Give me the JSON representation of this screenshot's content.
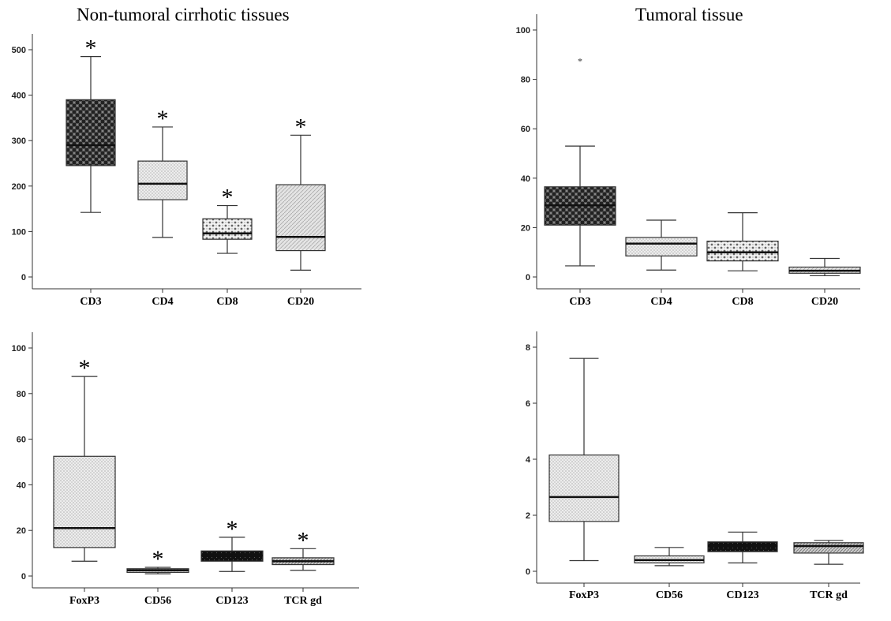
{
  "column_titles": {
    "left": "Non-tumoral cirrhotic tissues",
    "right": "Tumoral tissue"
  },
  "chart_data": [
    {
      "type": "box",
      "panel": "top-left",
      "title": "",
      "ylim": [
        0,
        500
      ],
      "yticks": [
        0,
        100,
        200,
        300,
        400,
        500
      ],
      "categories": [
        "CD3",
        "CD4",
        "CD8",
        "CD20"
      ],
      "boxes": [
        {
          "min": 142,
          "q1": 245,
          "median": 290,
          "q3": 390,
          "max": 485,
          "pattern": "dark-check"
        },
        {
          "min": 87,
          "q1": 170,
          "median": 205,
          "q3": 255,
          "max": 330,
          "pattern": "fine-dot"
        },
        {
          "min": 52,
          "q1": 83,
          "median": 96,
          "q3": 128,
          "max": 157,
          "pattern": "cross-dot"
        },
        {
          "min": 15,
          "q1": 58,
          "median": 88,
          "q3": 203,
          "max": 312,
          "pattern": "diag-light"
        }
      ],
      "significance": [
        "*",
        "*",
        "*",
        "*"
      ]
    },
    {
      "type": "box",
      "panel": "top-right",
      "title": "",
      "ylim": [
        0,
        100
      ],
      "yticks": [
        0,
        20,
        40,
        60,
        80,
        100
      ],
      "categories": [
        "CD3",
        "CD4",
        "CD8",
        "CD20"
      ],
      "boxes": [
        {
          "min": 4.5,
          "q1": 21,
          "median": 29,
          "q3": 36.5,
          "max": 53,
          "outliers": [
            88
          ],
          "pattern": "dark-check"
        },
        {
          "min": 2.8,
          "q1": 8.5,
          "median": 13.5,
          "q3": 16,
          "max": 23,
          "pattern": "fine-dot"
        },
        {
          "min": 2.5,
          "q1": 6.5,
          "median": 10,
          "q3": 14.5,
          "max": 26,
          "pattern": "cross-dot"
        },
        {
          "min": 0.5,
          "q1": 1.5,
          "median": 2.5,
          "q3": 4,
          "max": 7.5,
          "pattern": "diag-light"
        }
      ],
      "significance": [
        "",
        "",
        "",
        ""
      ]
    },
    {
      "type": "box",
      "panel": "bottom-left",
      "title": "",
      "ylim": [
        0,
        100
      ],
      "yticks": [
        0,
        20,
        40,
        60,
        80,
        100
      ],
      "categories": [
        "FoxP3",
        "CD56",
        "CD123",
        "TCR gd"
      ],
      "boxes": [
        {
          "min": 6.5,
          "q1": 12.5,
          "median": 21,
          "q3": 52.5,
          "max": 87.5,
          "pattern": "fine-dot"
        },
        {
          "min": 1,
          "q1": 1.6,
          "median": 2.5,
          "q3": 3.2,
          "max": 3.8,
          "pattern": "fine-dot"
        },
        {
          "min": 2,
          "q1": 6.5,
          "median": 9,
          "q3": 11,
          "max": 17,
          "pattern": "black-check"
        },
        {
          "min": 2.5,
          "q1": 5,
          "median": 6.5,
          "q3": 8,
          "max": 12,
          "pattern": "diag-mid"
        }
      ],
      "significance": [
        "*",
        "*",
        "*",
        "*"
      ]
    },
    {
      "type": "box",
      "panel": "bottom-right",
      "title": "",
      "ylim": [
        0,
        8
      ],
      "yticks": [
        0,
        2,
        4,
        6,
        8
      ],
      "categories": [
        "FoxP3",
        "CD56",
        "CD123",
        "TCR gd"
      ],
      "boxes": [
        {
          "min": 0.38,
          "q1": 1.78,
          "median": 2.65,
          "q3": 4.15,
          "max": 7.6,
          "pattern": "fine-dot"
        },
        {
          "min": 0.2,
          "q1": 0.3,
          "median": 0.4,
          "q3": 0.55,
          "max": 0.85,
          "pattern": "fine-dot"
        },
        {
          "min": 0.3,
          "q1": 0.7,
          "median": 0.9,
          "q3": 1.05,
          "max": 1.4,
          "pattern": "black-check"
        },
        {
          "min": 0.25,
          "q1": 0.65,
          "median": 0.9,
          "q3": 1.02,
          "max": 1.1,
          "pattern": "diag-mid"
        }
      ],
      "significance": [
        "",
        "",
        "",
        ""
      ]
    }
  ]
}
